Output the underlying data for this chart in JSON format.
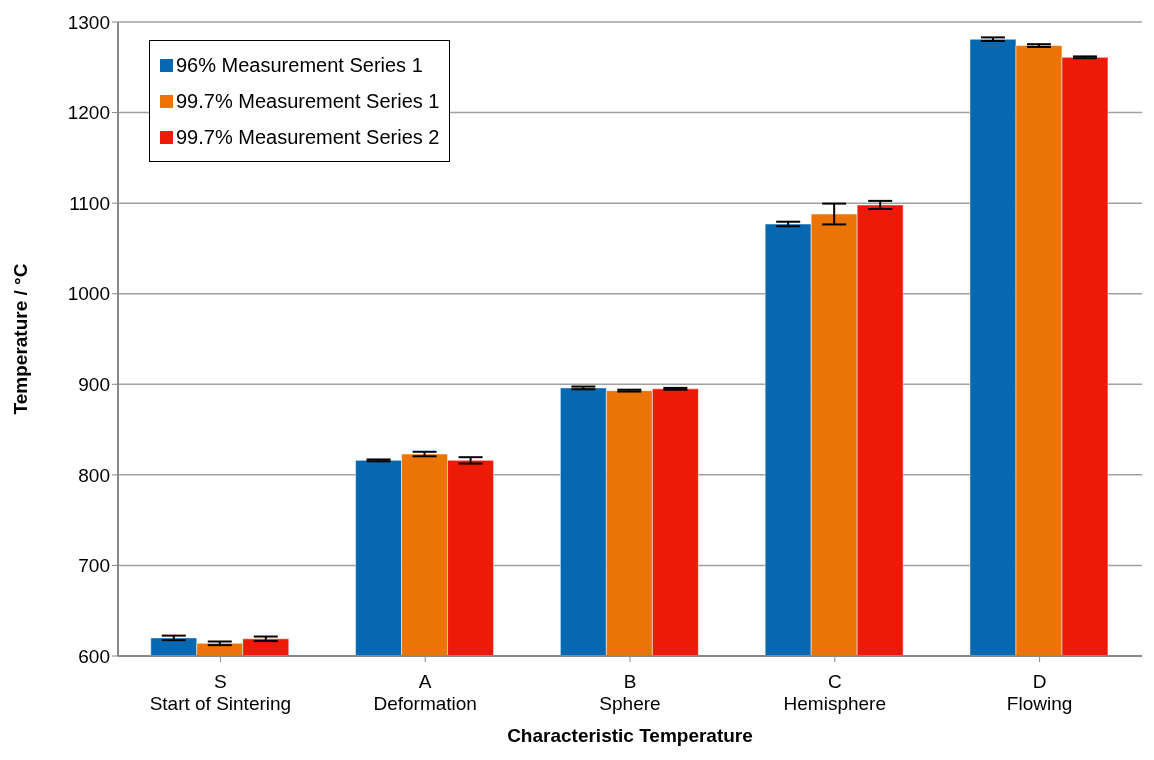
{
  "chart_data": {
    "type": "bar",
    "categories": [
      "S\nStart of Sintering",
      "A\nDeformation",
      "B\nSphere",
      "C\nHemisphere",
      "D\nFlowing"
    ],
    "series": [
      {
        "name": "96% Measurement Series 1",
        "color": "#0568b0",
        "values": [
          620,
          816,
          896,
          1077,
          1281
        ],
        "errors": [
          2.5,
          1,
          1.5,
          2.5,
          2
        ]
      },
      {
        "name": "99.7% Measurement Series 1",
        "color": "#ec7405",
        "values": [
          614,
          823,
          893,
          1088,
          1274
        ],
        "errors": [
          2,
          2.5,
          1,
          11.5,
          1.5
        ]
      },
      {
        "name": "99.7% Measurement Series 2",
        "color": "#ec1a06",
        "values": [
          619,
          816,
          895,
          1098,
          1261
        ],
        "errors": [
          2.5,
          3.5,
          1,
          4.5,
          1
        ]
      }
    ],
    "xlabel": "Characteristic Temperature",
    "ylabel": "Temperature / °C",
    "ylim": [
      600,
      1300
    ],
    "yticks": [
      600,
      700,
      800,
      900,
      1000,
      1100,
      1200,
      1300
    ],
    "grid": "y",
    "legend": "top left"
  }
}
